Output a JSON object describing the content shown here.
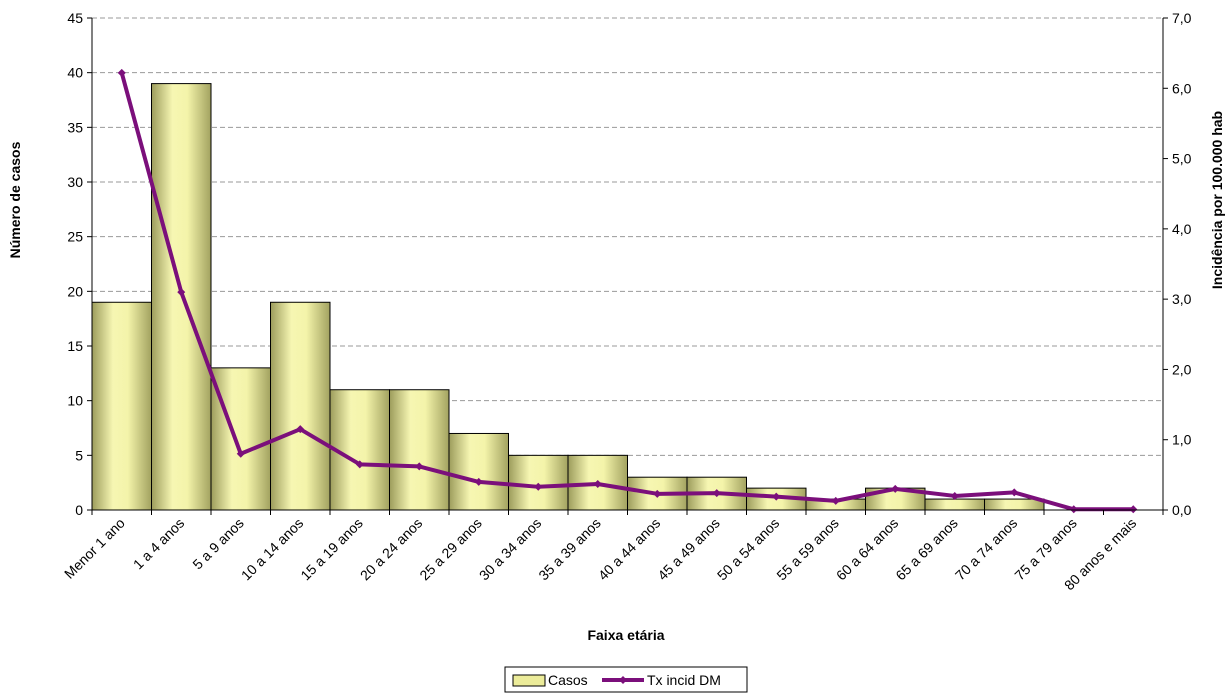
{
  "chart_data": {
    "type": "bar",
    "xlabel": "Faixa etária",
    "ylabel": "Número de casos",
    "y2label": "Incidência por 100.000 hab",
    "categories": [
      "Menor 1 ano",
      "1 a 4 anos",
      "5 a 9 anos",
      "10 a 14 anos",
      "15 a 19 anos",
      "20 a 24 anos",
      "25 a 29 anos",
      "30 a 34 anos",
      "35 a 39 anos",
      "40 a 44 anos",
      "45 a 49 anos",
      "50 a 54 anos",
      "55 a 59 anos",
      "60 a 64 anos",
      "65 a 69 anos",
      "70 a 74 anos",
      "75 a 79 anos",
      "80 anos e mais"
    ],
    "ylim": [
      0,
      45
    ],
    "yticks": [
      "0",
      "5",
      "10",
      "15",
      "20",
      "25",
      "30",
      "35",
      "40",
      "45"
    ],
    "y2lim": [
      0,
      7
    ],
    "y2ticks": [
      "0,0",
      "1,0",
      "2,0",
      "3,0",
      "4,0",
      "5,0",
      "6,0",
      "7,0"
    ],
    "series": [
      {
        "name": "Casos",
        "type": "bar",
        "axis": "left",
        "color": "#ecec9a",
        "values": [
          19,
          39,
          13,
          19,
          11,
          11,
          7,
          5,
          5,
          3,
          3,
          2,
          1,
          2,
          1,
          1,
          0,
          0
        ]
      },
      {
        "name": "Tx incid DM",
        "type": "line",
        "axis": "right",
        "color": "#7b0f7b",
        "values": [
          6.22,
          3.1,
          0.8,
          1.15,
          0.65,
          0.62,
          0.4,
          0.33,
          0.37,
          0.23,
          0.24,
          0.19,
          0.13,
          0.3,
          0.2,
          0.25,
          0.01,
          0.01
        ]
      }
    ],
    "grid": true,
    "legend": "bottom"
  }
}
